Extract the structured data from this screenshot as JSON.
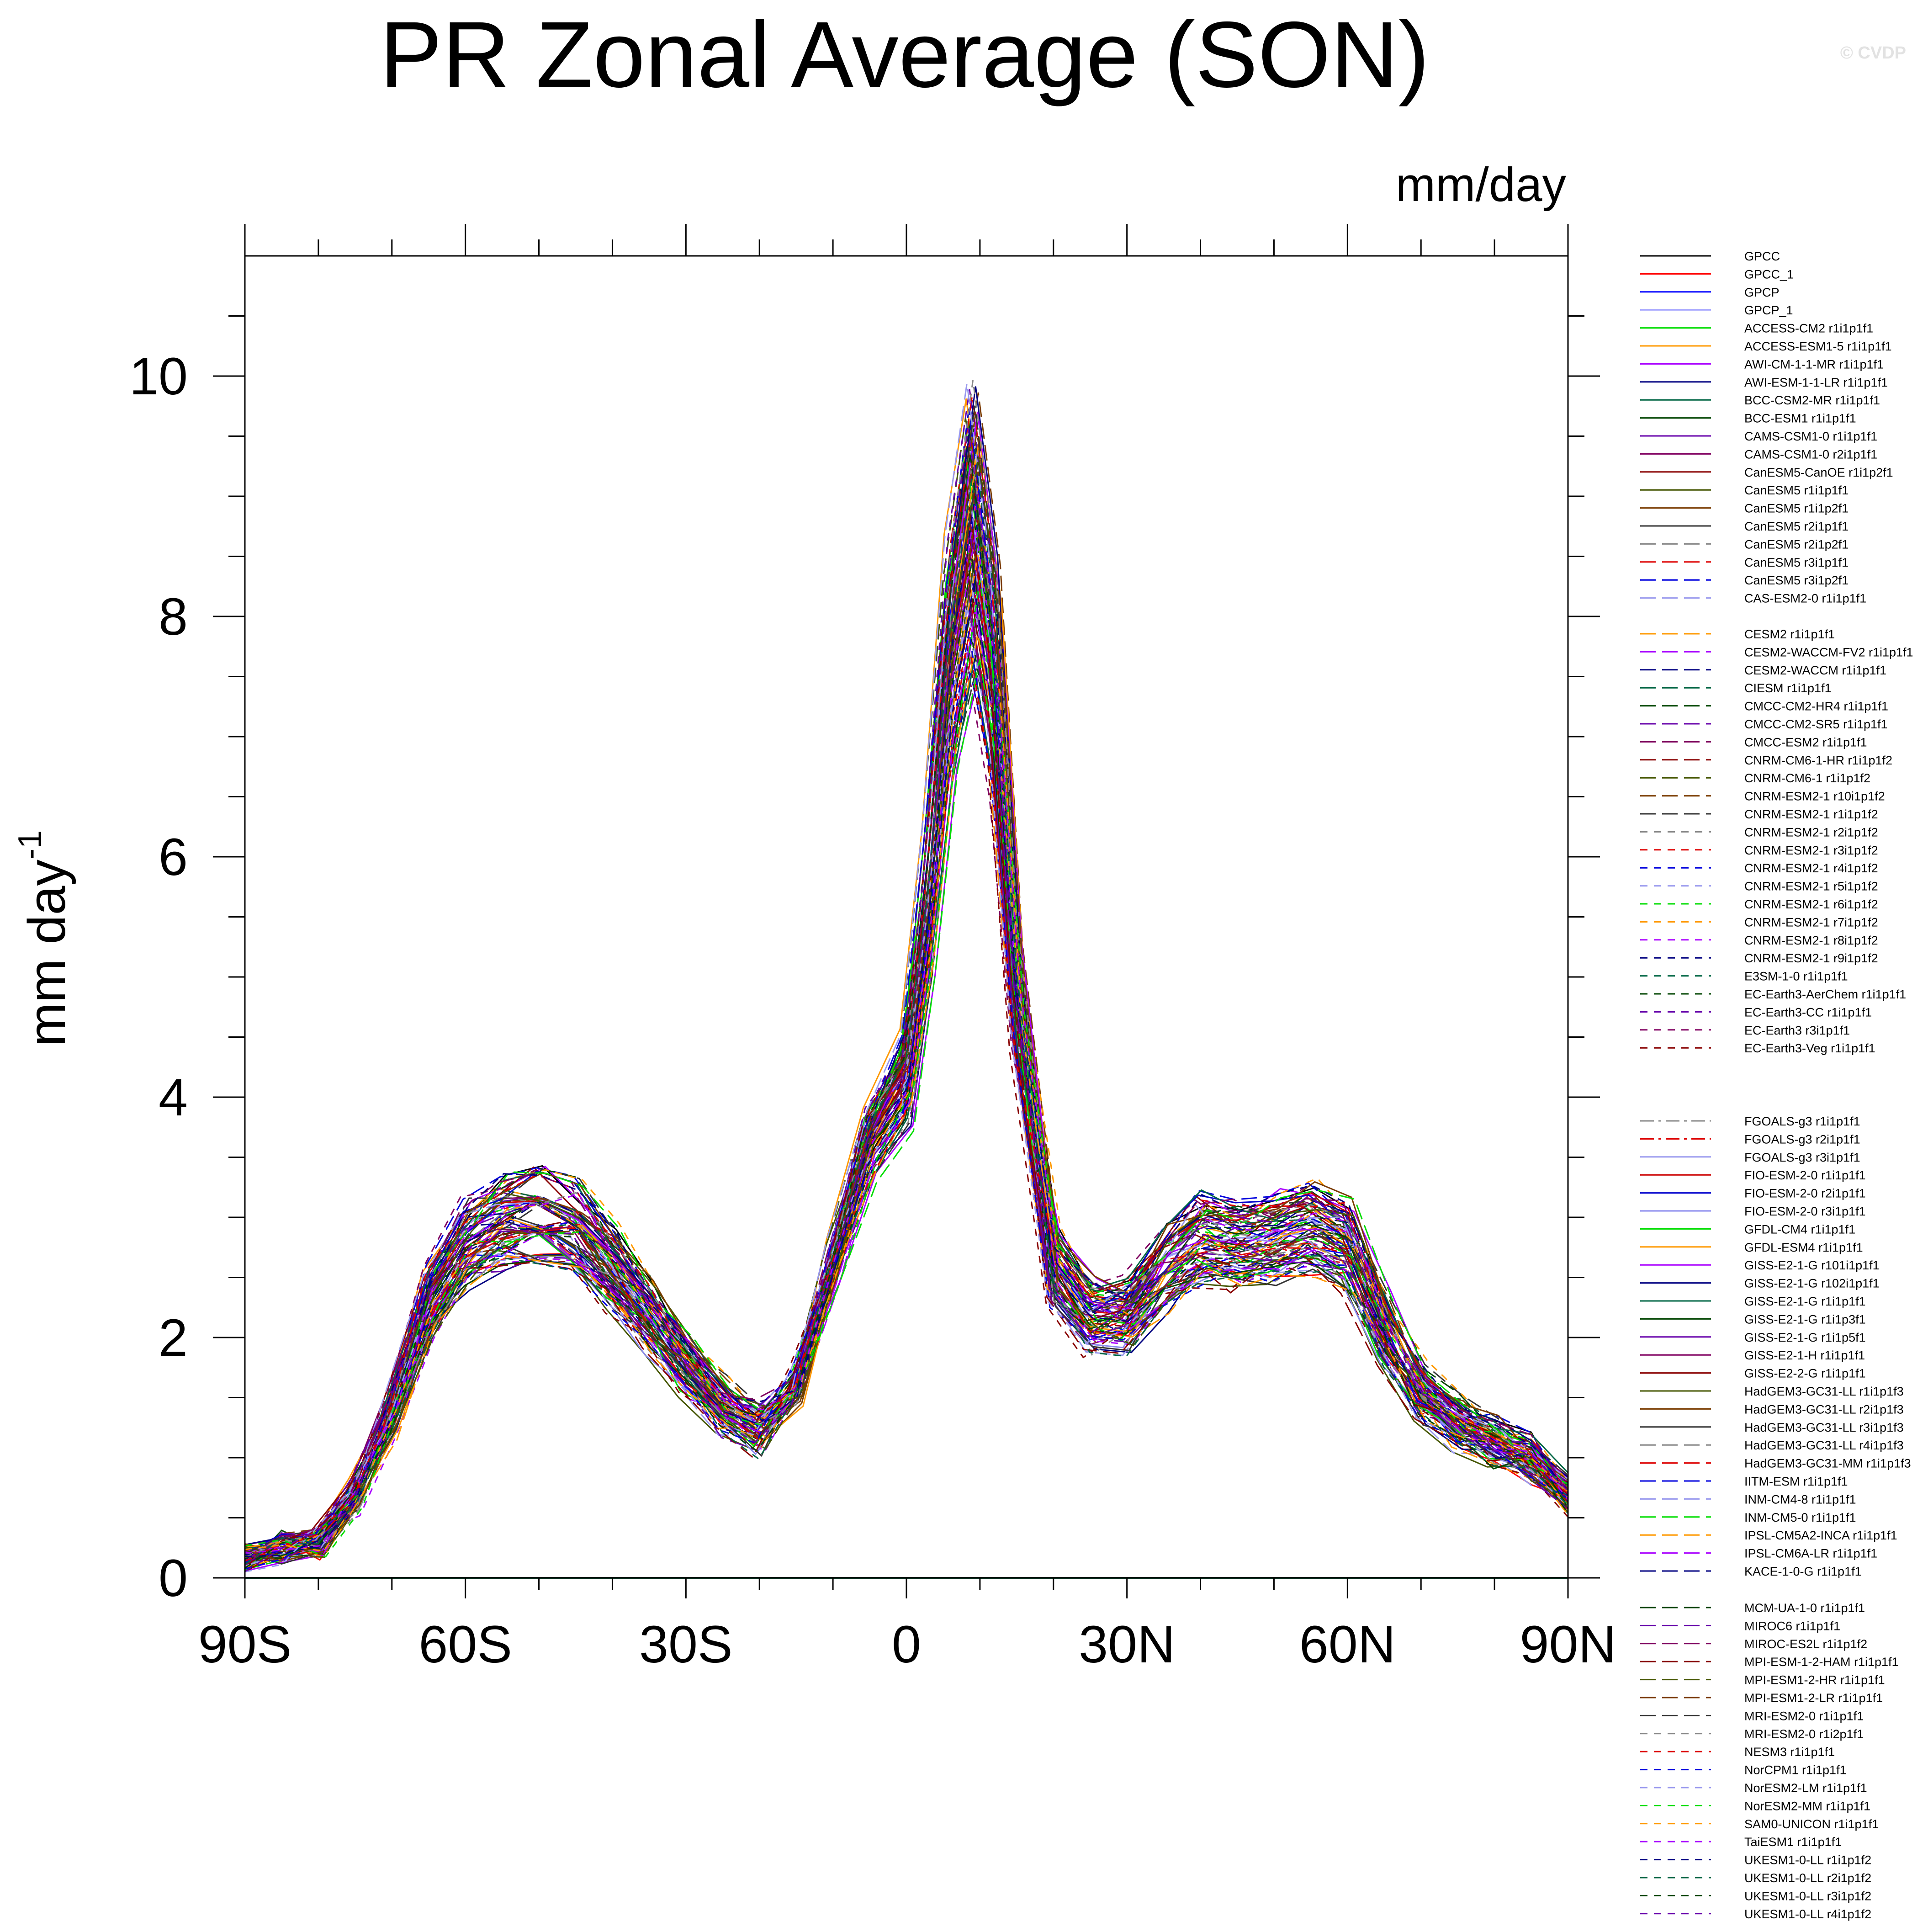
{
  "chart_data": {
    "type": "line",
    "title": "PR Zonal Average (SON)",
    "units": "mm/day",
    "ylabel": "mm day",
    "ylabel_superscript": "-1",
    "copyright": "© CVDP",
    "xlim": [
      -90,
      90
    ],
    "ylim": [
      0,
      11
    ],
    "xticks": [
      {
        "value": -90,
        "label": "90S"
      },
      {
        "value": -60,
        "label": "60S"
      },
      {
        "value": -30,
        "label": "30S"
      },
      {
        "value": 0,
        "label": "0"
      },
      {
        "value": 30,
        "label": "30N"
      },
      {
        "value": 60,
        "label": "60N"
      },
      {
        "value": 90,
        "label": "90N"
      }
    ],
    "yticks": [
      {
        "value": 0,
        "label": "0"
      },
      {
        "value": 2,
        "label": "2"
      },
      {
        "value": 4,
        "label": "4"
      },
      {
        "value": 6,
        "label": "6"
      },
      {
        "value": 8,
        "label": "8"
      },
      {
        "value": 10,
        "label": "10"
      }
    ],
    "latitude": [
      -90,
      -85,
      -80,
      -75,
      -70,
      -65,
      -60,
      -55,
      -50,
      -45,
      -40,
      -35,
      -30,
      -25,
      -20,
      -15,
      -10,
      -5,
      0,
      3,
      6,
      9,
      12,
      15,
      20,
      25,
      30,
      35,
      40,
      45,
      50,
      55,
      60,
      65,
      70,
      75,
      80,
      85,
      90
    ],
    "typical_profile_mm_day": [
      0.15,
      0.25,
      0.3,
      0.7,
      1.4,
      2.3,
      2.8,
      3.0,
      3.05,
      2.95,
      2.6,
      2.2,
      1.8,
      1.45,
      1.25,
      1.6,
      2.6,
      3.6,
      4.1,
      5.5,
      7.5,
      8.6,
      7.4,
      4.8,
      2.6,
      2.2,
      2.2,
      2.6,
      2.85,
      2.8,
      2.85,
      2.95,
      2.8,
      2.1,
      1.55,
      1.3,
      1.15,
      1.0,
      0.7
    ],
    "legend_groups": [
      [
        {
          "name": "GPCC",
          "color": "#000000",
          "dash": "solid"
        },
        {
          "name": "GPCC_1",
          "color": "#ff0000",
          "dash": "solid"
        },
        {
          "name": "GPCP",
          "color": "#0000ff",
          "dash": "solid"
        },
        {
          "name": "GPCP_1",
          "color": "#a0a0ff",
          "dash": "solid"
        },
        {
          "name": "ACCESS-CM2 r1i1p1f1",
          "color": "#00dd00",
          "dash": "solid"
        },
        {
          "name": "ACCESS-ESM1-5 r1i1p1f1",
          "color": "#ff9900",
          "dash": "solid"
        },
        {
          "name": "AWI-CM-1-1-MR r1i1p1f1",
          "color": "#aa00ff",
          "dash": "solid"
        },
        {
          "name": "AWI-ESM-1-1-LR r1i1p1f1",
          "color": "#000080",
          "dash": "solid"
        },
        {
          "name": "BCC-CSM2-MR r1i1p1f1",
          "color": "#006644",
          "dash": "solid"
        },
        {
          "name": "BCC-ESM1 r1i1p1f1",
          "color": "#004400",
          "dash": "solid"
        },
        {
          "name": "CAMS-CSM1-0 r1i1p1f1",
          "color": "#6600aa",
          "dash": "solid"
        },
        {
          "name": "CAMS-CSM1-0 r2i1p1f1",
          "color": "#800060",
          "dash": "solid"
        },
        {
          "name": "CanESM5-CanOE r1i1p2f1",
          "color": "#880000",
          "dash": "solid"
        },
        {
          "name": "CanESM5 r1i1p1f1",
          "color": "#445500",
          "dash": "solid"
        },
        {
          "name": "CanESM5 r1i1p2f1",
          "color": "#7a3b00",
          "dash": "solid"
        },
        {
          "name": "CanESM5 r2i1p1f1",
          "color": "#333333",
          "dash": "solid"
        },
        {
          "name": "CanESM5 r2i1p2f1",
          "color": "#888888",
          "dash": "longdash"
        },
        {
          "name": "CanESM5 r3i1p1f1",
          "color": "#dd0000",
          "dash": "longdash"
        },
        {
          "name": "CanESM5 r3i1p2f1",
          "color": "#0000dd",
          "dash": "longdash"
        },
        {
          "name": "CAS-ESM2-0 r1i1p1f1",
          "color": "#9999ee",
          "dash": "longdash"
        }
      ],
      [
        {
          "name": "CESM2 r1i1p1f1",
          "color": "#ff9900",
          "dash": "longdash"
        },
        {
          "name": "CESM2-WACCM-FV2 r1i1p1f1",
          "color": "#aa00ff",
          "dash": "longdash"
        },
        {
          "name": "CESM2-WACCM r1i1p1f1",
          "color": "#000080",
          "dash": "longdash"
        },
        {
          "name": "CIESM r1i1p1f1",
          "color": "#006644",
          "dash": "longdash"
        },
        {
          "name": "CMCC-CM2-HR4 r1i1p1f1",
          "color": "#004400",
          "dash": "longdash"
        },
        {
          "name": "CMCC-CM2-SR5 r1i1p1f1",
          "color": "#6600aa",
          "dash": "longdash"
        },
        {
          "name": "CMCC-ESM2 r1i1p1f1",
          "color": "#800060",
          "dash": "longdash"
        },
        {
          "name": "CNRM-CM6-1-HR r1i1p1f2",
          "color": "#880000",
          "dash": "longdash"
        },
        {
          "name": "CNRM-CM6-1 r1i1p1f2",
          "color": "#445500",
          "dash": "longdash"
        },
        {
          "name": "CNRM-ESM2-1 r10i1p1f2",
          "color": "#7a3b00",
          "dash": "longdash"
        },
        {
          "name": "CNRM-ESM2-1 r1i1p1f2",
          "color": "#333333",
          "dash": "longdash"
        },
        {
          "name": "CNRM-ESM2-1 r2i1p1f2",
          "color": "#888888",
          "dash": "dash"
        },
        {
          "name": "CNRM-ESM2-1 r3i1p1f2",
          "color": "#dd0000",
          "dash": "dash"
        },
        {
          "name": "CNRM-ESM2-1 r4i1p1f2",
          "color": "#0000dd",
          "dash": "dash"
        },
        {
          "name": "CNRM-ESM2-1 r5i1p1f2",
          "color": "#9999ee",
          "dash": "dash"
        },
        {
          "name": "CNRM-ESM2-1 r6i1p1f2",
          "color": "#00dd00",
          "dash": "dash"
        },
        {
          "name": "CNRM-ESM2-1 r7i1p1f2",
          "color": "#ff9900",
          "dash": "dash"
        },
        {
          "name": "CNRM-ESM2-1 r8i1p1f2",
          "color": "#aa00ff",
          "dash": "dash"
        },
        {
          "name": "CNRM-ESM2-1 r9i1p1f2",
          "color": "#000080",
          "dash": "dash"
        },
        {
          "name": "E3SM-1-0 r1i1p1f1",
          "color": "#006644",
          "dash": "dash"
        },
        {
          "name": "EC-Earth3-AerChem r1i1p1f1",
          "color": "#004400",
          "dash": "dash"
        },
        {
          "name": "EC-Earth3-CC r1i1p1f1",
          "color": "#6600aa",
          "dash": "dash"
        },
        {
          "name": "EC-Earth3 r3i1p1f1",
          "color": "#800060",
          "dash": "dash"
        },
        {
          "name": "EC-Earth3-Veg r1i1p1f1",
          "color": "#880000",
          "dash": "dash"
        }
      ],
      [
        {
          "name": "FGOALS-g3 r1i1p1f1",
          "color": "#888888",
          "dash": "dashdot"
        },
        {
          "name": "FGOALS-g3 r2i1p1f1",
          "color": "#dd0000",
          "dash": "dashdot"
        },
        {
          "name": "FGOALS-g3 r3i1p1f1",
          "color": "#9999ee",
          "dash": "solid"
        },
        {
          "name": "FIO-ESM-2-0 r1i1p1f1",
          "color": "#cc0000",
          "dash": "solid"
        },
        {
          "name": "FIO-ESM-2-0 r2i1p1f1",
          "color": "#0000cc",
          "dash": "solid"
        },
        {
          "name": "FIO-ESM-2-0 r3i1p1f1",
          "color": "#8888ee",
          "dash": "solid"
        },
        {
          "name": "GFDL-CM4 r1i1p1f1",
          "color": "#00dd00",
          "dash": "solid"
        },
        {
          "name": "GFDL-ESM4 r1i1p1f1",
          "color": "#ff9900",
          "dash": "solid"
        },
        {
          "name": "GISS-E2-1-G r101i1p1f1",
          "color": "#aa00ff",
          "dash": "solid"
        },
        {
          "name": "GISS-E2-1-G r102i1p1f1",
          "color": "#000080",
          "dash": "solid"
        },
        {
          "name": "GISS-E2-1-G r1i1p1f1",
          "color": "#006644",
          "dash": "solid"
        },
        {
          "name": "GISS-E2-1-G r1i1p3f1",
          "color": "#004400",
          "dash": "solid"
        },
        {
          "name": "GISS-E2-1-G r1i1p5f1",
          "color": "#6600aa",
          "dash": "solid"
        },
        {
          "name": "GISS-E2-1-H r1i1p1f1",
          "color": "#800060",
          "dash": "solid"
        },
        {
          "name": "GISS-E2-2-G r1i1p1f1",
          "color": "#880000",
          "dash": "solid"
        },
        {
          "name": "HadGEM3-GC31-LL r1i1p1f3",
          "color": "#445500",
          "dash": "solid"
        },
        {
          "name": "HadGEM3-GC31-LL r2i1p1f3",
          "color": "#7a3b00",
          "dash": "solid"
        },
        {
          "name": "HadGEM3-GC31-LL r3i1p1f3",
          "color": "#333333",
          "dash": "solid"
        },
        {
          "name": "HadGEM3-GC31-LL r4i1p1f3",
          "color": "#888888",
          "dash": "longdash"
        },
        {
          "name": "HadGEM3-GC31-MM r1i1p1f3",
          "color": "#dd0000",
          "dash": "longdash"
        },
        {
          "name": "IITM-ESM r1i1p1f1",
          "color": "#0000dd",
          "dash": "longdash"
        },
        {
          "name": "INM-CM4-8 r1i1p1f1",
          "color": "#9999ee",
          "dash": "longdash"
        },
        {
          "name": "INM-CM5-0 r1i1p1f1",
          "color": "#00dd00",
          "dash": "longdash"
        },
        {
          "name": "IPSL-CM5A2-INCA r1i1p1f1",
          "color": "#ff9900",
          "dash": "longdash"
        },
        {
          "name": "IPSL-CM6A-LR r1i1p1f1",
          "color": "#aa00ff",
          "dash": "longdash"
        },
        {
          "name": "KACE-1-0-G r1i1p1f1",
          "color": "#000080",
          "dash": "longdash"
        }
      ],
      [
        {
          "name": "MCM-UA-1-0 r1i1p1f1",
          "color": "#004400",
          "dash": "longdash"
        },
        {
          "name": "MIROC6 r1i1p1f1",
          "color": "#6600aa",
          "dash": "longdash"
        },
        {
          "name": "MIROC-ES2L r1i1p1f2",
          "color": "#800060",
          "dash": "longdash"
        },
        {
          "name": "MPI-ESM-1-2-HAM r1i1p1f1",
          "color": "#880000",
          "dash": "longdash"
        },
        {
          "name": "MPI-ESM1-2-HR r1i1p1f1",
          "color": "#445500",
          "dash": "longdash"
        },
        {
          "name": "MPI-ESM1-2-LR r1i1p1f1",
          "color": "#7a3b00",
          "dash": "longdash"
        },
        {
          "name": "MRI-ESM2-0 r1i1p1f1",
          "color": "#333333",
          "dash": "longdash"
        },
        {
          "name": "MRI-ESM2-0 r1i2p1f1",
          "color": "#888888",
          "dash": "dash"
        },
        {
          "name": "NESM3 r1i1p1f1",
          "color": "#dd0000",
          "dash": "dash"
        },
        {
          "name": "NorCPM1 r1i1p1f1",
          "color": "#0000dd",
          "dash": "dash"
        },
        {
          "name": "NorESM2-LM r1i1p1f1",
          "color": "#9999ee",
          "dash": "dash"
        },
        {
          "name": "NorESM2-MM r1i1p1f1",
          "color": "#00dd00",
          "dash": "dash"
        },
        {
          "name": "SAM0-UNICON r1i1p1f1",
          "color": "#ff9900",
          "dash": "dash"
        },
        {
          "name": "TaiESM1 r1i1p1f1",
          "color": "#aa00ff",
          "dash": "dash"
        },
        {
          "name": "UKESM1-0-LL r1i1p1f2",
          "color": "#000080",
          "dash": "dash"
        },
        {
          "name": "UKESM1-0-LL r2i1p1f2",
          "color": "#006644",
          "dash": "dash"
        },
        {
          "name": "UKESM1-0-LL r3i1p1f2",
          "color": "#004400",
          "dash": "dash"
        },
        {
          "name": "UKESM1-0-LL r4i1p1f2",
          "color": "#6600aa",
          "dash": "dash"
        }
      ]
    ]
  }
}
